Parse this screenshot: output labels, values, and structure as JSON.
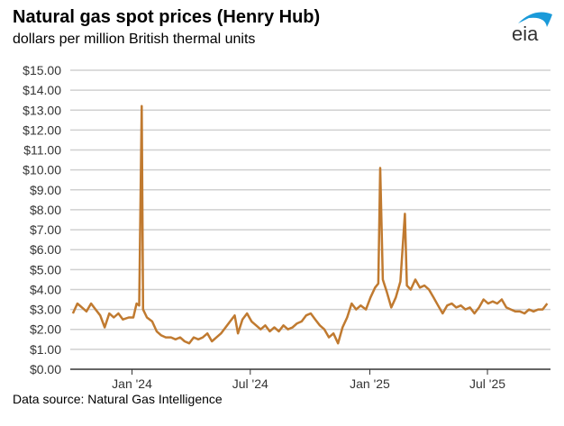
{
  "header": {
    "title": "Natural gas spot prices (Henry Hub)",
    "subtitle": "dollars per million British thermal units",
    "logo_text": "eia"
  },
  "footer": {
    "source": "Data source: Natural Gas Intelligence"
  },
  "colors": {
    "line": "#c07a30",
    "grid": "#d0d0d0",
    "axis": "#333333",
    "logo_blue": "#1a9ad9",
    "logo_text": "#333333"
  },
  "chart_data": {
    "type": "line",
    "title": "Natural gas spot prices (Henry Hub)",
    "ylabel": "dollars per million British thermal units",
    "ylim": [
      0,
      15
    ],
    "xlim": [
      "2023-09-28",
      "2025-10-06"
    ],
    "grid": true,
    "y_ticks": [
      "$0.00",
      "$1.00",
      "$2.00",
      "$3.00",
      "$4.00",
      "$5.00",
      "$6.00",
      "$7.00",
      "$8.00",
      "$9.00",
      "$10.00",
      "$11.00",
      "$12.00",
      "$13.00",
      "$14.00",
      "$15.00"
    ],
    "x_ticks": [
      {
        "date": "2024-01-01",
        "label": "Jan '24"
      },
      {
        "date": "2024-07-01",
        "label": "Jul '24"
      },
      {
        "date": "2025-01-01",
        "label": "Jan '25"
      },
      {
        "date": "2025-07-01",
        "label": "Jul '25"
      }
    ],
    "series": [
      {
        "points": [
          [
            "2023-10-02",
            2.8
          ],
          [
            "2023-10-09",
            3.3
          ],
          [
            "2023-10-16",
            3.1
          ],
          [
            "2023-10-23",
            2.9
          ],
          [
            "2023-10-30",
            3.3
          ],
          [
            "2023-11-06",
            3.0
          ],
          [
            "2023-11-13",
            2.7
          ],
          [
            "2023-11-20",
            2.1
          ],
          [
            "2023-11-27",
            2.8
          ],
          [
            "2023-12-04",
            2.6
          ],
          [
            "2023-12-11",
            2.8
          ],
          [
            "2023-12-18",
            2.5
          ],
          [
            "2023-12-27",
            2.6
          ],
          [
            "2024-01-03",
            2.6
          ],
          [
            "2024-01-08",
            3.3
          ],
          [
            "2024-01-12",
            3.2
          ],
          [
            "2024-01-16",
            13.2
          ],
          [
            "2024-01-18",
            3.0
          ],
          [
            "2024-01-24",
            2.6
          ],
          [
            "2024-02-01",
            2.4
          ],
          [
            "2024-02-08",
            1.9
          ],
          [
            "2024-02-15",
            1.7
          ],
          [
            "2024-02-22",
            1.6
          ],
          [
            "2024-03-01",
            1.6
          ],
          [
            "2024-03-08",
            1.5
          ],
          [
            "2024-03-15",
            1.6
          ],
          [
            "2024-03-22",
            1.4
          ],
          [
            "2024-03-29",
            1.3
          ],
          [
            "2024-04-05",
            1.6
          ],
          [
            "2024-04-12",
            1.5
          ],
          [
            "2024-04-19",
            1.6
          ],
          [
            "2024-04-26",
            1.8
          ],
          [
            "2024-05-03",
            1.4
          ],
          [
            "2024-05-10",
            1.6
          ],
          [
            "2024-05-17",
            1.8
          ],
          [
            "2024-05-24",
            2.1
          ],
          [
            "2024-05-31",
            2.4
          ],
          [
            "2024-06-07",
            2.7
          ],
          [
            "2024-06-12",
            1.8
          ],
          [
            "2024-06-19",
            2.5
          ],
          [
            "2024-06-26",
            2.8
          ],
          [
            "2024-07-03",
            2.4
          ],
          [
            "2024-07-10",
            2.2
          ],
          [
            "2024-07-17",
            2.0
          ],
          [
            "2024-07-24",
            2.2
          ],
          [
            "2024-07-31",
            1.9
          ],
          [
            "2024-08-07",
            2.1
          ],
          [
            "2024-08-14",
            1.9
          ],
          [
            "2024-08-21",
            2.2
          ],
          [
            "2024-08-28",
            2.0
          ],
          [
            "2024-09-04",
            2.1
          ],
          [
            "2024-09-11",
            2.3
          ],
          [
            "2024-09-18",
            2.4
          ],
          [
            "2024-09-25",
            2.7
          ],
          [
            "2024-10-02",
            2.8
          ],
          [
            "2024-10-09",
            2.5
          ],
          [
            "2024-10-16",
            2.2
          ],
          [
            "2024-10-23",
            2.0
          ],
          [
            "2024-10-30",
            1.6
          ],
          [
            "2024-11-06",
            1.8
          ],
          [
            "2024-11-13",
            1.3
          ],
          [
            "2024-11-20",
            2.1
          ],
          [
            "2024-11-27",
            2.6
          ],
          [
            "2024-12-04",
            3.3
          ],
          [
            "2024-12-11",
            3.0
          ],
          [
            "2024-12-18",
            3.2
          ],
          [
            "2024-12-26",
            3.0
          ],
          [
            "2025-01-02",
            3.6
          ],
          [
            "2025-01-09",
            4.1
          ],
          [
            "2025-01-14",
            4.3
          ],
          [
            "2025-01-17",
            10.1
          ],
          [
            "2025-01-21",
            4.5
          ],
          [
            "2025-01-27",
            3.9
          ],
          [
            "2025-02-03",
            3.1
          ],
          [
            "2025-02-10",
            3.6
          ],
          [
            "2025-02-17",
            4.4
          ],
          [
            "2025-02-24",
            7.8
          ],
          [
            "2025-02-27",
            4.2
          ],
          [
            "2025-03-05",
            4.0
          ],
          [
            "2025-03-12",
            4.5
          ],
          [
            "2025-03-19",
            4.1
          ],
          [
            "2025-03-26",
            4.2
          ],
          [
            "2025-04-02",
            4.0
          ],
          [
            "2025-04-09",
            3.6
          ],
          [
            "2025-04-16",
            3.2
          ],
          [
            "2025-04-23",
            2.8
          ],
          [
            "2025-04-30",
            3.2
          ],
          [
            "2025-05-07",
            3.3
          ],
          [
            "2025-05-14",
            3.1
          ],
          [
            "2025-05-21",
            3.2
          ],
          [
            "2025-05-28",
            3.0
          ],
          [
            "2025-06-04",
            3.1
          ],
          [
            "2025-06-11",
            2.8
          ],
          [
            "2025-06-18",
            3.1
          ],
          [
            "2025-06-25",
            3.5
          ],
          [
            "2025-07-02",
            3.3
          ],
          [
            "2025-07-09",
            3.4
          ],
          [
            "2025-07-16",
            3.3
          ],
          [
            "2025-07-23",
            3.5
          ],
          [
            "2025-07-30",
            3.1
          ],
          [
            "2025-08-06",
            3.0
          ],
          [
            "2025-08-13",
            2.9
          ],
          [
            "2025-08-20",
            2.9
          ],
          [
            "2025-08-27",
            2.8
          ],
          [
            "2025-09-03",
            3.0
          ],
          [
            "2025-09-10",
            2.9
          ],
          [
            "2025-09-17",
            3.0
          ],
          [
            "2025-09-24",
            3.0
          ],
          [
            "2025-10-01",
            3.3
          ]
        ]
      }
    ]
  }
}
